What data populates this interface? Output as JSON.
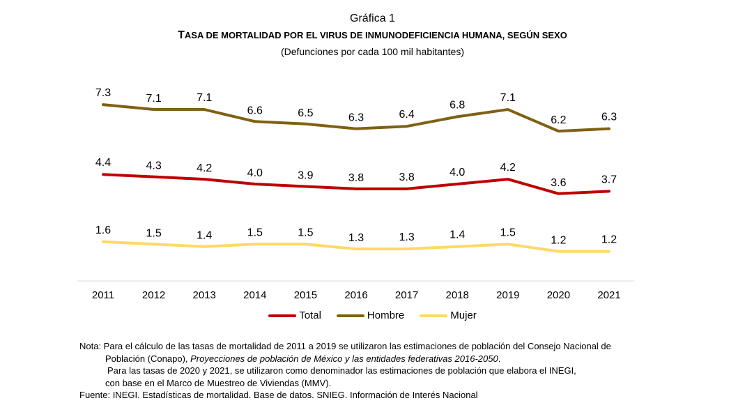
{
  "header": {
    "kicker": "Gráfica 1",
    "title_first_letter": "T",
    "title_rest": "ASA DE MORTALIDAD POR EL VIRUS DE INMUNODEFICIENCIA HUMANA, SEGÚN SEXO",
    "subtitle": "(Defunciones por cada 100 mil habitantes)"
  },
  "chart_data": {
    "type": "line",
    "title": "Tasa de mortalidad por el virus de inmunodeficiencia humana, según sexo",
    "subtitle": "(Defunciones por cada 100 mil habitantes)",
    "x": [
      "2011",
      "2012",
      "2013",
      "2014",
      "2015",
      "2016",
      "2017",
      "2018",
      "2019",
      "2020",
      "2021"
    ],
    "ylim": [
      0,
      8
    ],
    "grid": false,
    "legend_position": "bottom",
    "series": [
      {
        "name": "Total",
        "color": "#C00000",
        "values": [
          4.4,
          4.3,
          4.2,
          4.0,
          3.9,
          3.8,
          3.8,
          4.0,
          4.2,
          3.6,
          3.7
        ]
      },
      {
        "name": "Hombre",
        "color": "#7F6014",
        "values": [
          7.3,
          7.1,
          7.1,
          6.6,
          6.5,
          6.3,
          6.4,
          6.8,
          7.1,
          6.2,
          6.3
        ]
      },
      {
        "name": "Mujer",
        "color": "#FFD966",
        "values": [
          1.6,
          1.5,
          1.4,
          1.5,
          1.5,
          1.3,
          1.3,
          1.4,
          1.5,
          1.2,
          1.2
        ]
      }
    ]
  },
  "notes": {
    "line1": "Nota: Para el cálculo de las tasas de mortalidad de 2011 a 2019 se utilizaron las estimaciones de población del Consejo Nacional de",
    "line2_normal": "Población (Conapo), ",
    "line2_italic": "Proyecciones de población de México y las entidades federativas 2016-2050",
    "line2_end": ".",
    "line3": "Para las tasas de 2020 y 2021, se utilizaron como denominador las estimaciones de población que elabora el INEGI,",
    "line4": "con base en el Marco de Muestreo de Viviendas (MMV).",
    "source": "Fuente: INEGI. Estadísticas de mortalidad. Base de datos. SNIEG. Información de Interés Nacional"
  }
}
